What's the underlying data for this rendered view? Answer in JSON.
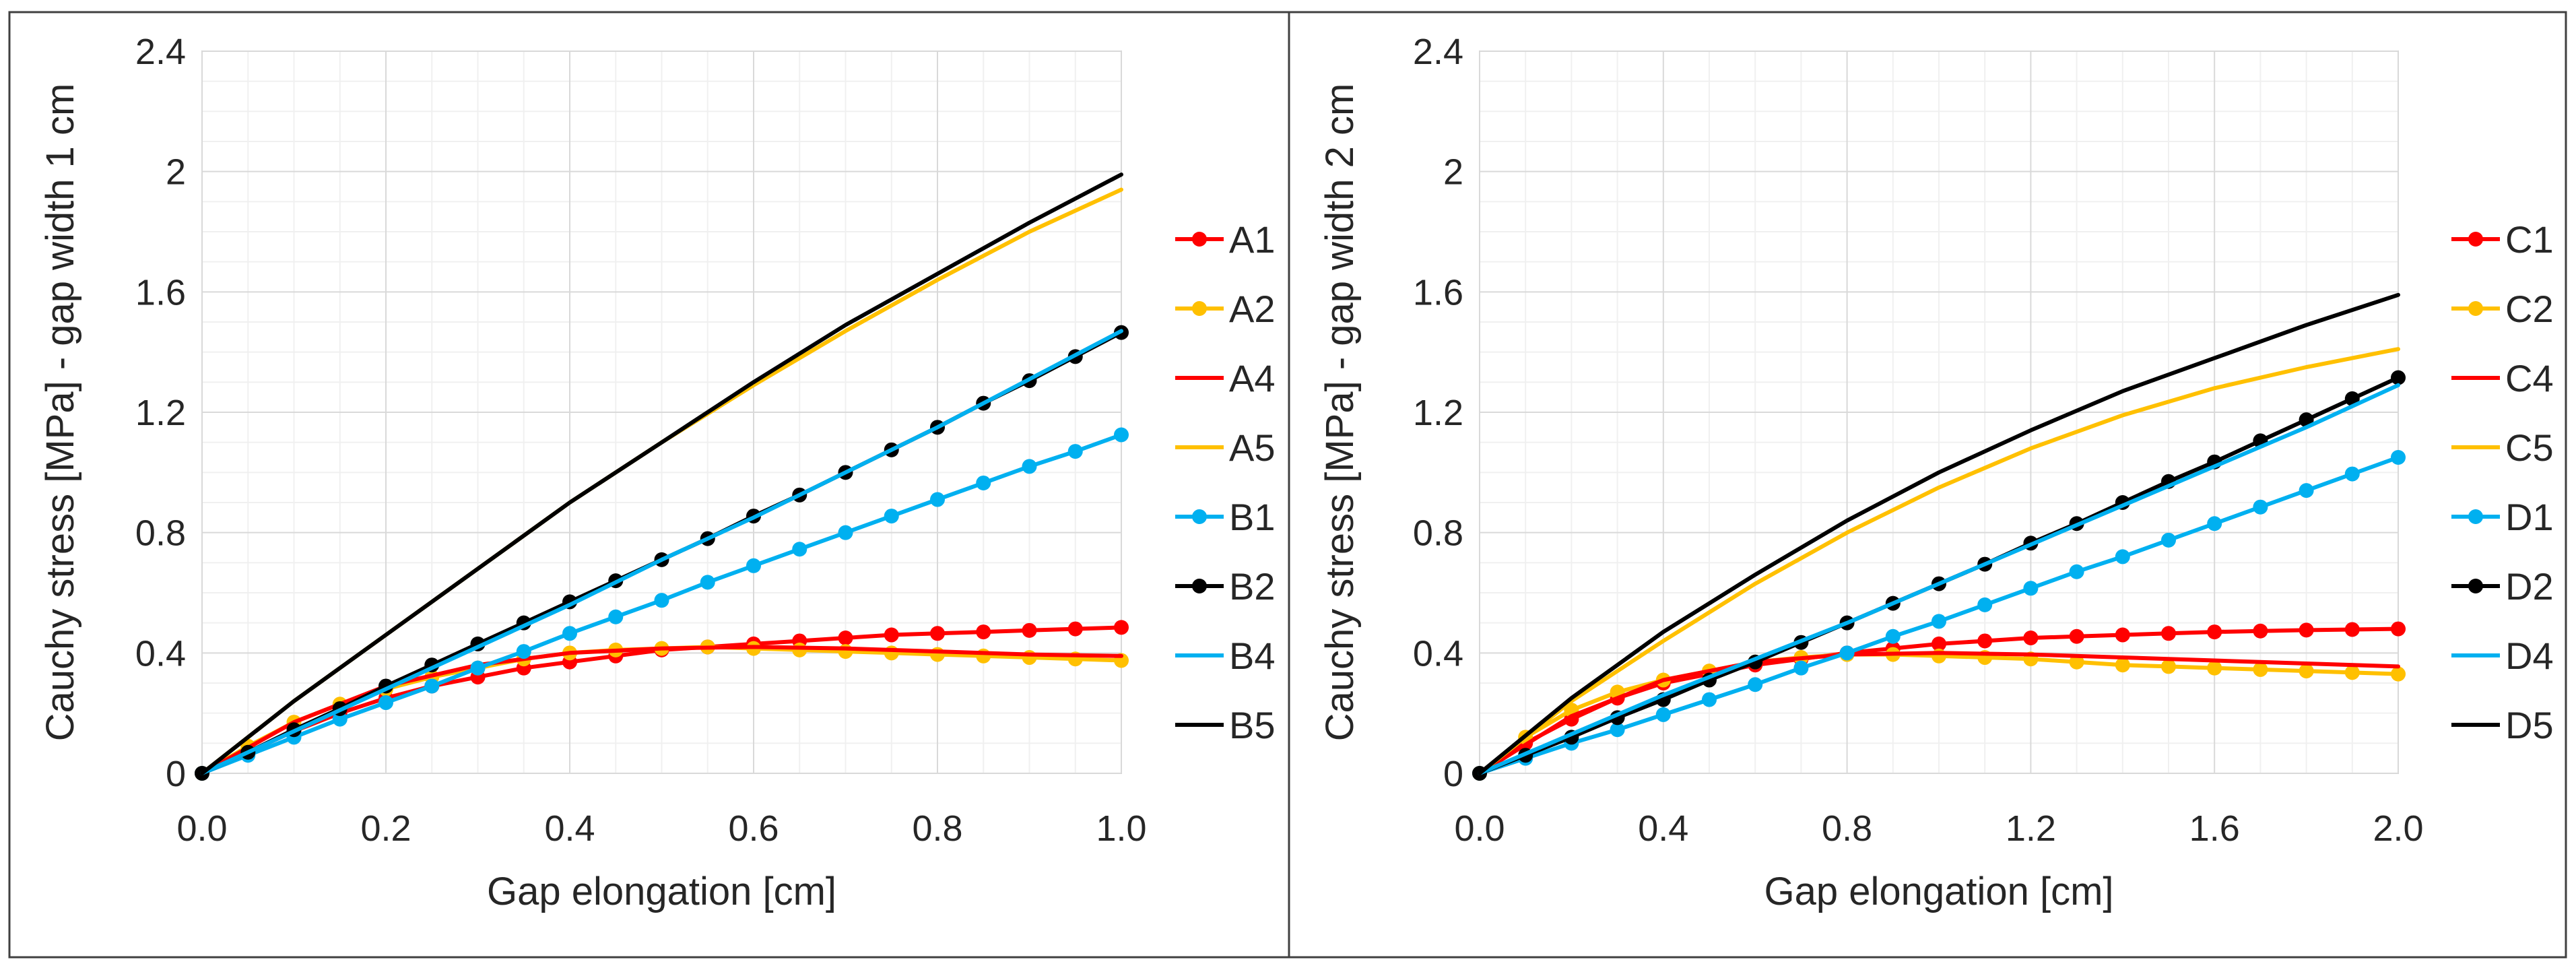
{
  "chart_data": [
    {
      "type": "line",
      "xlabel": "Gap elongation [cm]",
      "ylabel": "Cauchy stress [MPa] - gap width 1 cm",
      "xlim": [
        0,
        1.0
      ],
      "ylim": [
        0,
        2.4
      ],
      "xticks": [
        "0.0",
        "0.2",
        "0.4",
        "0.6",
        "0.8",
        "1.0"
      ],
      "yticks": [
        "0",
        "0.4",
        "0.8",
        "1.2",
        "1.6",
        "2",
        "2.4"
      ],
      "grid": true,
      "legend_position": "right",
      "series": [
        {
          "name": "A1",
          "color": "#FF0000",
          "markers": true,
          "x": [
            0,
            0.05,
            0.1,
            0.15,
            0.2,
            0.25,
            0.3,
            0.35,
            0.4,
            0.45,
            0.5,
            0.55,
            0.6,
            0.65,
            0.7,
            0.75,
            0.8,
            0.85,
            0.9,
            0.95,
            1.0
          ],
          "y": [
            0,
            0.07,
            0.14,
            0.2,
            0.25,
            0.29,
            0.32,
            0.35,
            0.37,
            0.39,
            0.41,
            0.42,
            0.43,
            0.44,
            0.45,
            0.46,
            0.465,
            0.47,
            0.475,
            0.48,
            0.485
          ]
        },
        {
          "name": "A2",
          "color": "#FFC000",
          "markers": true,
          "x": [
            0,
            0.05,
            0.1,
            0.15,
            0.2,
            0.25,
            0.3,
            0.35,
            0.4,
            0.45,
            0.5,
            0.55,
            0.6,
            0.65,
            0.7,
            0.75,
            0.8,
            0.85,
            0.9,
            0.95,
            1.0
          ],
          "y": [
            0,
            0.09,
            0.17,
            0.23,
            0.28,
            0.32,
            0.35,
            0.38,
            0.4,
            0.41,
            0.415,
            0.42,
            0.415,
            0.41,
            0.405,
            0.4,
            0.395,
            0.39,
            0.385,
            0.38,
            0.375
          ]
        },
        {
          "name": "A4",
          "color": "#FF0000",
          "markers": false,
          "x": [
            0,
            0.1,
            0.2,
            0.3,
            0.4,
            0.5,
            0.6,
            0.7,
            0.8,
            0.9,
            1.0
          ],
          "y": [
            0,
            0.17,
            0.29,
            0.36,
            0.4,
            0.415,
            0.42,
            0.415,
            0.405,
            0.395,
            0.39
          ]
        },
        {
          "name": "A5",
          "color": "#FFC000",
          "markers": false,
          "x": [
            0,
            0.1,
            0.2,
            0.3,
            0.4,
            0.5,
            0.6,
            0.7,
            0.8,
            0.9,
            1.0
          ],
          "y": [
            0,
            0.24,
            0.46,
            0.68,
            0.9,
            1.1,
            1.29,
            1.47,
            1.64,
            1.8,
            1.94
          ]
        },
        {
          "name": "B1",
          "color": "#00B0F0",
          "markers": true,
          "x": [
            0,
            0.05,
            0.1,
            0.15,
            0.2,
            0.25,
            0.3,
            0.35,
            0.4,
            0.45,
            0.5,
            0.55,
            0.6,
            0.65,
            0.7,
            0.75,
            0.8,
            0.85,
            0.9,
            0.95,
            1.0
          ],
          "y": [
            0,
            0.06,
            0.12,
            0.18,
            0.235,
            0.29,
            0.35,
            0.405,
            0.465,
            0.52,
            0.575,
            0.635,
            0.69,
            0.745,
            0.8,
            0.855,
            0.91,
            0.965,
            1.02,
            1.07,
            1.125
          ]
        },
        {
          "name": "B2",
          "color": "#000000",
          "markers": true,
          "x": [
            0,
            0.05,
            0.1,
            0.15,
            0.2,
            0.25,
            0.3,
            0.35,
            0.4,
            0.45,
            0.5,
            0.55,
            0.6,
            0.65,
            0.7,
            0.75,
            0.8,
            0.85,
            0.9,
            0.95,
            1.0
          ],
          "y": [
            0,
            0.07,
            0.145,
            0.215,
            0.29,
            0.36,
            0.43,
            0.5,
            0.57,
            0.64,
            0.71,
            0.78,
            0.855,
            0.925,
            1.0,
            1.075,
            1.15,
            1.23,
            1.305,
            1.385,
            1.465
          ]
        },
        {
          "name": "B4",
          "color": "#00B0F0",
          "markers": false,
          "x": [
            0,
            0.1,
            0.2,
            0.3,
            0.4,
            0.5,
            0.6,
            0.7,
            0.8,
            0.9,
            1.0
          ],
          "y": [
            0,
            0.14,
            0.28,
            0.42,
            0.56,
            0.71,
            0.85,
            1.0,
            1.15,
            1.31,
            1.47
          ]
        },
        {
          "name": "B5",
          "color": "#000000",
          "markers": false,
          "x": [
            0,
            0.1,
            0.2,
            0.3,
            0.4,
            0.5,
            0.6,
            0.7,
            0.8,
            0.9,
            1.0
          ],
          "y": [
            0,
            0.24,
            0.46,
            0.68,
            0.9,
            1.1,
            1.3,
            1.49,
            1.66,
            1.83,
            1.99
          ]
        }
      ]
    },
    {
      "type": "line",
      "xlabel": "Gap elongation [cm]",
      "ylabel": "Cauchy stress [MPa] - gap width 2 cm",
      "xlim": [
        0,
        2.0
      ],
      "ylim": [
        0,
        2.4
      ],
      "xticks": [
        "0.0",
        "0.4",
        "0.8",
        "1.2",
        "1.6",
        "2.0"
      ],
      "yticks": [
        "0",
        "0.4",
        "0.8",
        "1.2",
        "1.6",
        "2",
        "2.4"
      ],
      "grid": true,
      "legend_position": "right",
      "series": [
        {
          "name": "C1",
          "color": "#FF0000",
          "markers": true,
          "x": [
            0,
            0.1,
            0.2,
            0.3,
            0.4,
            0.5,
            0.6,
            0.7,
            0.8,
            0.9,
            1.0,
            1.1,
            1.2,
            1.3,
            1.4,
            1.5,
            1.6,
            1.7,
            1.8,
            1.9,
            2.0
          ],
          "y": [
            0,
            0.1,
            0.18,
            0.25,
            0.3,
            0.33,
            0.36,
            0.38,
            0.4,
            0.415,
            0.43,
            0.44,
            0.45,
            0.455,
            0.46,
            0.465,
            0.47,
            0.473,
            0.476,
            0.478,
            0.48
          ]
        },
        {
          "name": "C2",
          "color": "#FFC000",
          "markers": true,
          "x": [
            0,
            0.1,
            0.2,
            0.3,
            0.4,
            0.5,
            0.6,
            0.7,
            0.8,
            0.9,
            1.0,
            1.1,
            1.2,
            1.3,
            1.4,
            1.5,
            1.6,
            1.7,
            1.8,
            1.9,
            2.0
          ],
          "y": [
            0,
            0.12,
            0.21,
            0.27,
            0.31,
            0.34,
            0.37,
            0.385,
            0.395,
            0.395,
            0.39,
            0.385,
            0.38,
            0.37,
            0.36,
            0.355,
            0.35,
            0.345,
            0.34,
            0.335,
            0.33
          ]
        },
        {
          "name": "C4",
          "color": "#FF0000",
          "markers": false,
          "x": [
            0,
            0.2,
            0.4,
            0.6,
            0.8,
            1.0,
            1.2,
            1.4,
            1.6,
            1.8,
            2.0
          ],
          "y": [
            0,
            0.19,
            0.31,
            0.37,
            0.395,
            0.4,
            0.395,
            0.385,
            0.375,
            0.365,
            0.355
          ]
        },
        {
          "name": "C5",
          "color": "#FFC000",
          "markers": false,
          "x": [
            0,
            0.2,
            0.4,
            0.6,
            0.8,
            1.0,
            1.2,
            1.4,
            1.6,
            1.8,
            2.0
          ],
          "y": [
            0,
            0.24,
            0.44,
            0.63,
            0.8,
            0.95,
            1.08,
            1.19,
            1.28,
            1.35,
            1.41
          ]
        },
        {
          "name": "D1",
          "color": "#00B0F0",
          "markers": true,
          "x": [
            0,
            0.1,
            0.2,
            0.3,
            0.4,
            0.5,
            0.6,
            0.7,
            0.8,
            0.9,
            1.0,
            1.1,
            1.2,
            1.3,
            1.4,
            1.5,
            1.6,
            1.7,
            1.8,
            1.9,
            2.0
          ],
          "y": [
            0,
            0.05,
            0.1,
            0.145,
            0.195,
            0.245,
            0.295,
            0.35,
            0.4,
            0.455,
            0.505,
            0.56,
            0.615,
            0.67,
            0.72,
            0.775,
            0.83,
            0.885,
            0.94,
            0.995,
            1.05
          ]
        },
        {
          "name": "D2",
          "color": "#000000",
          "markers": true,
          "x": [
            0,
            0.1,
            0.2,
            0.3,
            0.4,
            0.5,
            0.6,
            0.7,
            0.8,
            0.9,
            1.0,
            1.1,
            1.2,
            1.3,
            1.4,
            1.5,
            1.6,
            1.7,
            1.8,
            1.9,
            2.0
          ],
          "y": [
            0,
            0.06,
            0.12,
            0.185,
            0.245,
            0.31,
            0.37,
            0.435,
            0.5,
            0.565,
            0.63,
            0.695,
            0.765,
            0.83,
            0.9,
            0.97,
            1.035,
            1.105,
            1.175,
            1.245,
            1.315
          ]
        },
        {
          "name": "D4",
          "color": "#00B0F0",
          "markers": false,
          "x": [
            0,
            0.2,
            0.4,
            0.6,
            0.8,
            1.0,
            1.2,
            1.4,
            1.6,
            1.8,
            2.0
          ],
          "y": [
            0,
            0.13,
            0.26,
            0.38,
            0.5,
            0.63,
            0.76,
            0.89,
            1.02,
            1.15,
            1.29
          ]
        },
        {
          "name": "D5",
          "color": "#000000",
          "markers": false,
          "x": [
            0,
            0.2,
            0.4,
            0.6,
            0.8,
            1.0,
            1.2,
            1.4,
            1.6,
            1.8,
            2.0
          ],
          "y": [
            0,
            0.25,
            0.47,
            0.66,
            0.84,
            1.0,
            1.14,
            1.27,
            1.38,
            1.49,
            1.59
          ]
        }
      ]
    }
  ]
}
